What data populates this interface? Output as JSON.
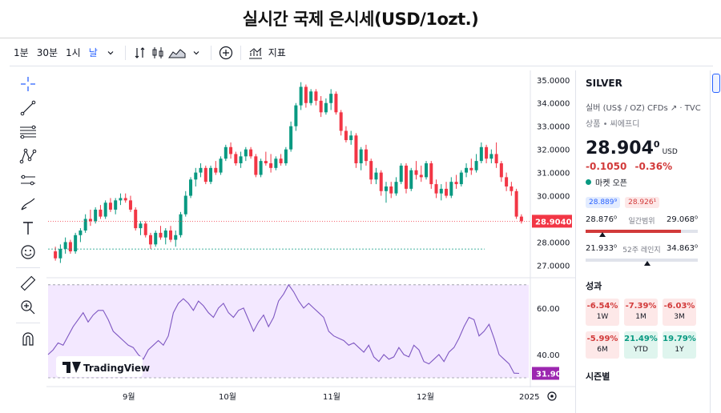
{
  "title": "실시간 국제 은시세(USD/1ozt.)",
  "toolbar": {
    "intervals": [
      "1분",
      "30분",
      "1시",
      "날"
    ],
    "active_interval": "날",
    "indicators_label": "지표"
  },
  "left_tools": [
    "crosshair-icon",
    "trendline-icon",
    "fib-icon",
    "pattern-icon",
    "projection-icon",
    "brush-icon",
    "text-icon",
    "emoji-icon",
    "ruler-icon",
    "zoom-icon",
    "magnet-icon"
  ],
  "chart_data": {
    "type": "candlestick",
    "symbol": "SILVER",
    "x_labels": [
      "9월",
      "10월",
      "11월",
      "12월",
      "2025"
    ],
    "y_ticks": [
      "35.0000",
      "34.0000",
      "33.0000",
      "32.0000",
      "31.0000",
      "30.0000",
      "29.0000",
      "28.0000",
      "27.0000"
    ],
    "ylim": [
      26.6,
      35.2
    ],
    "candles": [
      [
        27.6,
        27.8,
        27.2,
        27.3
      ],
      [
        27.3,
        27.9,
        27.1,
        27.7
      ],
      [
        27.7,
        28.2,
        27.5,
        28.0
      ],
      [
        28.0,
        28.1,
        27.5,
        27.6
      ],
      [
        27.6,
        28.4,
        27.5,
        28.3
      ],
      [
        28.3,
        28.6,
        28.0,
        28.5
      ],
      [
        28.5,
        29.2,
        28.4,
        29.0
      ],
      [
        29.0,
        29.4,
        28.7,
        28.9
      ],
      [
        28.9,
        29.5,
        28.8,
        29.4
      ],
      [
        29.4,
        29.6,
        29.0,
        29.1
      ],
      [
        29.1,
        29.8,
        29.0,
        29.7
      ],
      [
        29.7,
        29.9,
        29.3,
        29.4
      ],
      [
        29.4,
        29.9,
        29.2,
        29.8
      ],
      [
        29.8,
        30.1,
        29.6,
        29.9
      ],
      [
        29.9,
        30.1,
        29.7,
        29.8
      ],
      [
        29.8,
        30.0,
        29.3,
        29.4
      ],
      [
        29.4,
        29.5,
        28.5,
        28.6
      ],
      [
        28.6,
        28.9,
        28.3,
        28.8
      ],
      [
        28.8,
        28.9,
        28.2,
        28.3
      ],
      [
        28.3,
        28.4,
        27.7,
        27.9
      ],
      [
        27.9,
        28.5,
        27.8,
        28.4
      ],
      [
        28.4,
        28.7,
        28.1,
        28.2
      ],
      [
        28.2,
        28.6,
        27.9,
        28.5
      ],
      [
        28.5,
        28.7,
        28.0,
        28.1
      ],
      [
        28.1,
        28.5,
        27.8,
        28.3
      ],
      [
        28.3,
        29.3,
        28.2,
        29.2
      ],
      [
        29.2,
        30.2,
        29.1,
        30.0
      ],
      [
        30.0,
        30.8,
        29.9,
        30.7
      ],
      [
        30.7,
        31.2,
        30.4,
        31.0
      ],
      [
        31.0,
        31.4,
        30.8,
        31.2
      ],
      [
        31.2,
        31.3,
        30.5,
        30.6
      ],
      [
        30.6,
        31.3,
        30.5,
        31.2
      ],
      [
        31.2,
        31.5,
        30.9,
        31.0
      ],
      [
        31.0,
        31.7,
        30.9,
        31.6
      ],
      [
        31.6,
        32.2,
        31.5,
        32.1
      ],
      [
        32.1,
        32.3,
        31.6,
        31.8
      ],
      [
        31.8,
        31.9,
        31.3,
        31.4
      ],
      [
        31.4,
        31.9,
        31.2,
        31.7
      ],
      [
        31.7,
        32.1,
        31.5,
        32.0
      ],
      [
        32.0,
        32.1,
        31.6,
        31.7
      ],
      [
        31.7,
        31.8,
        30.8,
        30.9
      ],
      [
        30.9,
        31.6,
        30.8,
        31.5
      ],
      [
        31.5,
        31.9,
        31.3,
        31.4
      ],
      [
        31.4,
        31.8,
        31.0,
        31.2
      ],
      [
        31.2,
        31.7,
        31.1,
        31.6
      ],
      [
        31.6,
        31.8,
        31.3,
        31.4
      ],
      [
        31.4,
        32.1,
        31.3,
        32.0
      ],
      [
        32.0,
        33.2,
        31.9,
        33.0
      ],
      [
        33.0,
        34.0,
        32.8,
        33.9
      ],
      [
        33.9,
        34.9,
        33.7,
        34.7
      ],
      [
        34.7,
        34.8,
        33.8,
        34.0
      ],
      [
        34.0,
        34.6,
        33.9,
        34.5
      ],
      [
        34.5,
        34.6,
        33.9,
        34.1
      ],
      [
        34.1,
        34.3,
        33.4,
        33.6
      ],
      [
        33.6,
        34.2,
        33.5,
        34.0
      ],
      [
        34.0,
        34.6,
        33.7,
        34.4
      ],
      [
        34.4,
        34.5,
        33.5,
        33.6
      ],
      [
        33.6,
        33.7,
        32.6,
        32.8
      ],
      [
        32.8,
        33.0,
        32.3,
        32.4
      ],
      [
        32.4,
        32.8,
        32.2,
        32.6
      ],
      [
        32.6,
        32.7,
        31.2,
        31.4
      ],
      [
        31.4,
        32.1,
        31.1,
        32.0
      ],
      [
        32.0,
        32.2,
        31.3,
        31.5
      ],
      [
        31.5,
        31.6,
        30.5,
        30.7
      ],
      [
        30.7,
        31.2,
        30.5,
        31.0
      ],
      [
        31.0,
        31.1,
        30.0,
        30.2
      ],
      [
        30.2,
        30.6,
        29.7,
        30.4
      ],
      [
        30.4,
        30.6,
        29.9,
        30.1
      ],
      [
        30.1,
        30.8,
        30.0,
        30.6
      ],
      [
        30.6,
        31.4,
        30.5,
        31.3
      ],
      [
        31.3,
        31.4,
        30.1,
        30.3
      ],
      [
        30.3,
        31.2,
        30.2,
        31.1
      ],
      [
        31.1,
        31.5,
        30.7,
        30.9
      ],
      [
        30.9,
        31.3,
        30.6,
        30.8
      ],
      [
        30.8,
        31.5,
        30.7,
        31.4
      ],
      [
        31.4,
        31.5,
        30.3,
        30.5
      ],
      [
        30.5,
        30.7,
        29.9,
        30.1
      ],
      [
        30.1,
        30.5,
        29.8,
        30.3
      ],
      [
        30.3,
        30.6,
        29.9,
        30.0
      ],
      [
        30.0,
        30.8,
        29.9,
        30.6
      ],
      [
        30.6,
        30.9,
        30.3,
        30.5
      ],
      [
        30.5,
        31.1,
        30.4,
        31.0
      ],
      [
        31.0,
        31.4,
        30.8,
        31.2
      ],
      [
        31.2,
        31.6,
        30.9,
        31.1
      ],
      [
        31.1,
        31.8,
        31.0,
        31.5
      ],
      [
        31.5,
        32.3,
        31.4,
        32.1
      ],
      [
        32.1,
        32.2,
        31.4,
        31.6
      ],
      [
        31.6,
        32.0,
        31.4,
        31.8
      ],
      [
        31.8,
        32.3,
        31.2,
        31.4
      ],
      [
        31.4,
        31.5,
        30.6,
        30.8
      ],
      [
        30.8,
        31.0,
        30.2,
        30.4
      ],
      [
        30.4,
        30.6,
        30.0,
        30.2
      ],
      [
        30.2,
        30.3,
        29.0,
        29.1
      ],
      [
        29.1,
        29.2,
        28.8,
        28.9
      ]
    ],
    "last_price_label": "28.9040",
    "rsi": {
      "ticks": [
        "60.00",
        "40.00"
      ],
      "ylim": [
        30,
        72
      ],
      "last_label": "31.90",
      "values": [
        40,
        42,
        45,
        44,
        48,
        52,
        55,
        58,
        54,
        57,
        59,
        59,
        55,
        50,
        48,
        46,
        44,
        43,
        40,
        38,
        42,
        44,
        46,
        44,
        48,
        58,
        62,
        64,
        62,
        59,
        63,
        61,
        58,
        56,
        60,
        62,
        58,
        56,
        59,
        60,
        55,
        50,
        54,
        57,
        52,
        56,
        63,
        66,
        70,
        67,
        63,
        60,
        62,
        60,
        58,
        56,
        50,
        48,
        47,
        46,
        44,
        45,
        43,
        41,
        44,
        39,
        37,
        40,
        38,
        39,
        43,
        40,
        39,
        44,
        42,
        37,
        36,
        38,
        40,
        37,
        41,
        43,
        47,
        52,
        56,
        55,
        48,
        50,
        53,
        47,
        40,
        38,
        36,
        32,
        31.9
      ]
    },
    "watermark": "TradingView"
  },
  "panel": {
    "symbol": "SILVER",
    "description": "실버 (US$ / OZ) CFDs ↗ · TVC",
    "category": "상품 • 씨에프디",
    "price_main": "28.904",
    "price_sup": "0",
    "currency": "USD",
    "change": "-0.1050",
    "change_pct": "-0.36%",
    "market_status": "마켓 오픈",
    "bid": "28.889⁹",
    "ask": "28.926¹",
    "day_low": "28.876⁰",
    "day_label": "일간범위",
    "day_high": "29.068⁰",
    "day_fill": [
      0.0,
      0.85
    ],
    "day_mark": 0.15,
    "wk_low": "21.933⁰",
    "wk_label": "52주 레인지",
    "wk_high": "34.863⁰",
    "wk_mark": 0.55,
    "perf_title": "성과",
    "perf": [
      {
        "value": "-6.54%",
        "period": "1W",
        "sign": "neg"
      },
      {
        "value": "-7.39%",
        "period": "1M",
        "sign": "neg"
      },
      {
        "value": "-6.03%",
        "period": "3M",
        "sign": "neg"
      },
      {
        "value": "-5.99%",
        "period": "6M",
        "sign": "neg"
      },
      {
        "value": "21.49%",
        "period": "YTD",
        "sign": "pos"
      },
      {
        "value": "19.79%",
        "period": "1Y",
        "sign": "pos"
      }
    ],
    "season_title": "시즌별"
  },
  "colors": {
    "up": "#089981",
    "down": "#f23645",
    "rsi_line": "#7e57c2",
    "rsi_bg": "#f3e8ff",
    "last_bg": "#f23645",
    "rsi_label_bg": "#9c27b0"
  }
}
